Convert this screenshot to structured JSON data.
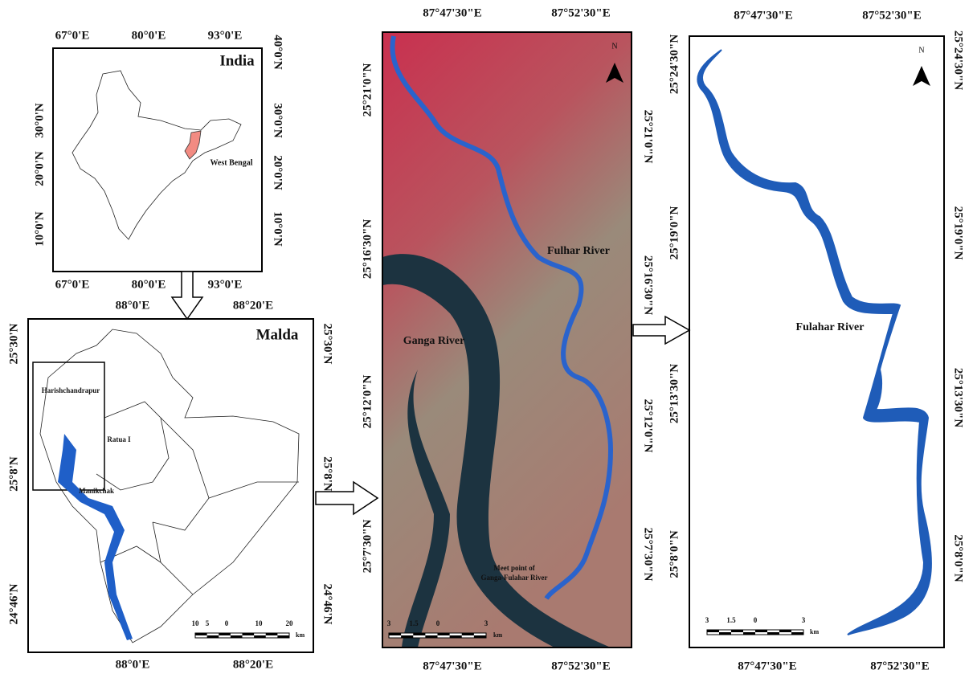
{
  "panels": [
    {
      "title": "India",
      "labels": [
        "West Bengal"
      ],
      "ticks": {
        "top": [
          "67°0'E",
          "80°0'E",
          "93°0'E"
        ],
        "bottom": [
          "67°0'E",
          "80°0'E",
          "93°0'E"
        ],
        "left": [
          "30°0'N",
          "20°0'N",
          "10°0'N"
        ],
        "right": [
          "40°0'N",
          "30°0'N",
          "20°0'N",
          "10°0'N"
        ]
      }
    },
    {
      "title": "Malda",
      "labels": [
        "Harishchandrapur",
        "Ratua I",
        "Manikchak"
      ],
      "ticks": {
        "top": [
          "88°0'E",
          "88°20'E"
        ],
        "bottom": [
          "88°0'E",
          "88°20'E"
        ],
        "left": [
          "25°30'N",
          "25°8'N",
          "24°46'N"
        ],
        "right": [
          "25°30'N",
          "25°8'N",
          "24°46'N"
        ]
      },
      "scale": {
        "labels": [
          "10",
          "5",
          "0",
          "10",
          "20"
        ],
        "unit": "km"
      }
    },
    {
      "labels": [
        "Fulhar River",
        "Ganga River",
        "Meet point of",
        "Ganga-Fulahar River"
      ],
      "ticks": {
        "top": [
          "87°47'30\"E",
          "87°52'30\"E"
        ],
        "bottom": [
          "87°47'30\"E",
          "87°52'30\"E"
        ],
        "left": [
          "25°21'0\"N",
          "25°16'30\"N",
          "25°12'0\"N",
          "25°7'30\"N"
        ],
        "right": [
          "25°21'0\"N",
          "25°16'30\"N",
          "25°12'0\"N",
          "25°7'30\"N"
        ]
      },
      "scale": {
        "labels": [
          "3",
          "1.5",
          "0",
          "3"
        ],
        "unit": "km"
      },
      "north": "N"
    },
    {
      "labels": [
        "Fulahar River"
      ],
      "ticks": {
        "top": [
          "87°47'30\"E",
          "87°52'30\"E"
        ],
        "bottom": [
          "87°47'30\"E",
          "87°52'30\"E"
        ],
        "left": [
          "25°24'30\"N",
          "25°19'0\"N",
          "25°13'30\"N",
          "25°8'0\"N"
        ],
        "right": [
          "25°24'30\"N",
          "25°19'0\"N",
          "25°13'30\"N",
          "25°8'0\"N"
        ]
      },
      "scale": {
        "labels": [
          "3",
          "1.5",
          "0",
          "3"
        ],
        "unit": "km"
      },
      "north": "N"
    }
  ]
}
